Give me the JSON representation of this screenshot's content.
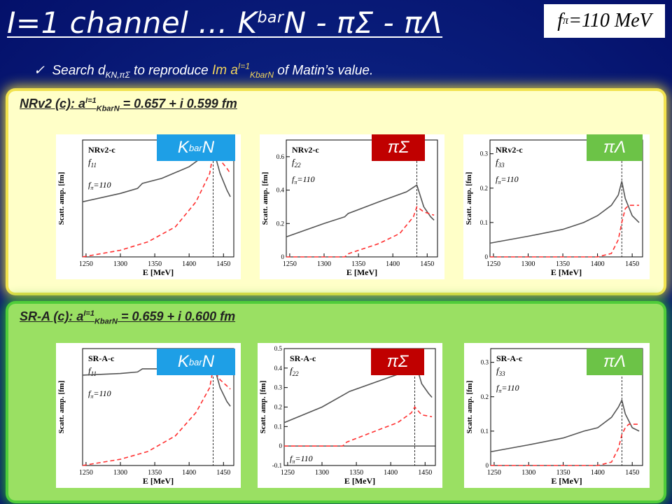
{
  "title": {
    "main": "I=1 channel … K",
    "sup": "bar",
    "rest": "N - πΣ - πΛ"
  },
  "fpi_box": {
    "f": "f",
    "sub": "π",
    "value": "=110 MeV"
  },
  "bullet": {
    "check": "✓",
    "t1": "Search d",
    "t1_sub": "KN,πΣ",
    "t2": " to reproduce ",
    "hl1": "Im a",
    "hl_sup": "I=1",
    "hl_sub": "KbarN",
    "t3": " of Matin’s value."
  },
  "panels": [
    {
      "label_pre": "NRv2 (c): a",
      "label_sup": "I=1",
      "label_sub": "KbarN",
      "label_post": " = 0.657 + i 0.599 fm"
    },
    {
      "label_pre": "SR-A (c): a",
      "label_sup": "I=1",
      "label_sub": "KbarN",
      "label_post": " = 0.659 + i 0.600 fm"
    }
  ],
  "tags": {
    "kbarn_k": "K",
    "kbarn_sup": "bar",
    "kbarn_n": "N",
    "pisigma": "πΣ",
    "pilambda": "πΛ"
  },
  "colors": {
    "solid": "#555555",
    "dashed": "#ff3030",
    "tag_blue": "#1e9fe6",
    "tag_red": "#c00000",
    "tag_green": "#6cc347"
  },
  "chart_data": [
    {
      "type": "line",
      "model": "NRv2-c",
      "func": "f",
      "func_sub": "11",
      "fpi_label": "f",
      "fpi_sub": "π",
      "fpi_val": "=110",
      "xlabel": "E [MeV]",
      "ylabel": "Scatt. amp. [fm]",
      "xlim": [
        1245,
        1465
      ],
      "ylim": [
        0,
        0.7
      ],
      "xticks": [
        1250,
        1300,
        1350,
        1400,
        1450
      ],
      "yticks": [],
      "hline_zero": false,
      "vline": 1435,
      "series": [
        {
          "style": "solid",
          "x": [
            1245,
            1300,
            1325,
            1332,
            1360,
            1400,
            1420,
            1435,
            1445,
            1455,
            1460
          ],
          "y": [
            0.33,
            0.38,
            0.41,
            0.44,
            0.47,
            0.54,
            0.6,
            0.65,
            0.5,
            0.4,
            0.36
          ]
        },
        {
          "style": "dashed",
          "x": [
            1245,
            1300,
            1340,
            1380,
            1410,
            1430,
            1435,
            1445,
            1455,
            1460
          ],
          "y": [
            0.0,
            0.04,
            0.09,
            0.18,
            0.33,
            0.5,
            0.62,
            0.58,
            0.53,
            0.5
          ]
        }
      ]
    },
    {
      "type": "line",
      "model": "NRv2-c",
      "func": "f",
      "func_sub": "22",
      "fpi_label": "f",
      "fpi_sub": "π",
      "fpi_val": "=110",
      "xlabel": "E [MeV]",
      "ylabel": "Scatt. amp. [fm]",
      "xlim": [
        1245,
        1465
      ],
      "ylim": [
        0,
        0.7
      ],
      "xticks": [
        1250,
        1300,
        1350,
        1400,
        1450
      ],
      "yticks": [
        0,
        0.2,
        0.4,
        0.6
      ],
      "hline_zero": false,
      "vline": 1435,
      "series": [
        {
          "style": "solid",
          "x": [
            1245,
            1300,
            1330,
            1335,
            1380,
            1420,
            1435,
            1445,
            1455,
            1460
          ],
          "y": [
            0.12,
            0.2,
            0.24,
            0.26,
            0.33,
            0.39,
            0.43,
            0.3,
            0.24,
            0.22
          ]
        },
        {
          "style": "dashed",
          "x": [
            1245,
            1330,
            1336,
            1380,
            1410,
            1430,
            1435,
            1445,
            1460
          ],
          "y": [
            0.0,
            0.0,
            0.02,
            0.08,
            0.14,
            0.24,
            0.3,
            0.27,
            0.25
          ]
        }
      ]
    },
    {
      "type": "line",
      "model": "NRv2-c",
      "func": "f",
      "func_sub": "33",
      "fpi_label": "f",
      "fpi_sub": "π",
      "fpi_val": "=110",
      "xlabel": "E [MeV]",
      "ylabel": "Scatt. amp. [fm]",
      "xlim": [
        1245,
        1465
      ],
      "ylim": [
        0,
        0.34
      ],
      "xticks": [
        1250,
        1300,
        1350,
        1400,
        1450
      ],
      "yticks": [
        0,
        0.1,
        0.2,
        0.3
      ],
      "hline_zero": false,
      "vline": 1435,
      "series": [
        {
          "style": "solid",
          "x": [
            1245,
            1300,
            1350,
            1380,
            1400,
            1420,
            1430,
            1435,
            1440,
            1450,
            1460
          ],
          "y": [
            0.04,
            0.06,
            0.08,
            0.1,
            0.12,
            0.15,
            0.18,
            0.22,
            0.17,
            0.12,
            0.1
          ]
        },
        {
          "style": "dashed",
          "x": [
            1245,
            1400,
            1420,
            1430,
            1435,
            1440,
            1445,
            1460
          ],
          "y": [
            0.0,
            0.0,
            0.01,
            0.05,
            0.1,
            0.14,
            0.15,
            0.15
          ]
        }
      ]
    },
    {
      "type": "line",
      "model": "SR-A-c",
      "func": "f",
      "func_sub": "11",
      "fpi_label": "f",
      "fpi_sub": "π",
      "fpi_val": "=110",
      "xlabel": "E [MeV]",
      "ylabel": "Scatt. amp. [fm]",
      "xlim": [
        1245,
        1465
      ],
      "ylim": [
        0,
        0.75
      ],
      "xticks": [
        1250,
        1300,
        1350,
        1400,
        1450
      ],
      "yticks": [],
      "hline_zero": false,
      "vline": 1435,
      "series": [
        {
          "style": "solid",
          "x": [
            1245,
            1300,
            1325,
            1332,
            1380,
            1420,
            1435,
            1445,
            1455,
            1460
          ],
          "y": [
            0.58,
            0.59,
            0.6,
            0.62,
            0.62,
            0.63,
            0.66,
            0.5,
            0.41,
            0.38
          ]
        },
        {
          "style": "dashed",
          "x": [
            1245,
            1300,
            1340,
            1380,
            1410,
            1430,
            1435,
            1445,
            1455,
            1460
          ],
          "y": [
            0.0,
            0.04,
            0.09,
            0.19,
            0.34,
            0.5,
            0.62,
            0.55,
            0.51,
            0.49
          ]
        }
      ]
    },
    {
      "type": "line",
      "model": "SR-A-c",
      "func": "f",
      "func_sub": "22",
      "fpi_label": "f",
      "fpi_sub": "π",
      "fpi_val": "=110",
      "xlabel": "E [MeV]",
      "ylabel": "Scatt. amp. [fm]",
      "xlim": [
        1245,
        1465
      ],
      "ylim": [
        -0.1,
        0.5
      ],
      "xticks": [
        1250,
        1300,
        1350,
        1400,
        1450
      ],
      "yticks": [
        -0.1,
        0,
        0.1,
        0.2,
        0.3,
        0.4,
        0.5
      ],
      "hline_zero": true,
      "vline": 1435,
      "series": [
        {
          "style": "solid",
          "x": [
            1245,
            1300,
            1330,
            1340,
            1380,
            1420,
            1435,
            1445,
            1455,
            1460
          ],
          "y": [
            0.12,
            0.2,
            0.26,
            0.28,
            0.33,
            0.38,
            0.44,
            0.32,
            0.27,
            0.25
          ]
        },
        {
          "style": "dashed",
          "x": [
            1245,
            1330,
            1336,
            1380,
            1410,
            1430,
            1435,
            1445,
            1460
          ],
          "y": [
            0.0,
            0.0,
            0.02,
            0.08,
            0.12,
            0.17,
            0.2,
            0.16,
            0.15
          ]
        }
      ]
    },
    {
      "type": "line",
      "model": "SR-A-c",
      "func": "f",
      "func_sub": "33",
      "fpi_label": "f",
      "fpi_sub": "π",
      "fpi_val": "=110",
      "xlabel": "E [MeV]",
      "ylabel": "Scatt. amp. [fm]",
      "xlim": [
        1245,
        1465
      ],
      "ylim": [
        0,
        0.34
      ],
      "xticks": [
        1250,
        1300,
        1350,
        1400,
        1450
      ],
      "yticks": [
        0,
        0.1,
        0.2,
        0.3
      ],
      "hline_zero": false,
      "vline": 1435,
      "series": [
        {
          "style": "solid",
          "x": [
            1245,
            1300,
            1350,
            1380,
            1400,
            1420,
            1430,
            1435,
            1440,
            1450,
            1460
          ],
          "y": [
            0.04,
            0.06,
            0.08,
            0.1,
            0.11,
            0.14,
            0.17,
            0.19,
            0.15,
            0.11,
            0.1
          ]
        },
        {
          "style": "dashed",
          "x": [
            1245,
            1400,
            1420,
            1430,
            1435,
            1440,
            1445,
            1460
          ],
          "y": [
            0.0,
            0.0,
            0.01,
            0.05,
            0.09,
            0.11,
            0.12,
            0.12
          ]
        }
      ]
    }
  ]
}
